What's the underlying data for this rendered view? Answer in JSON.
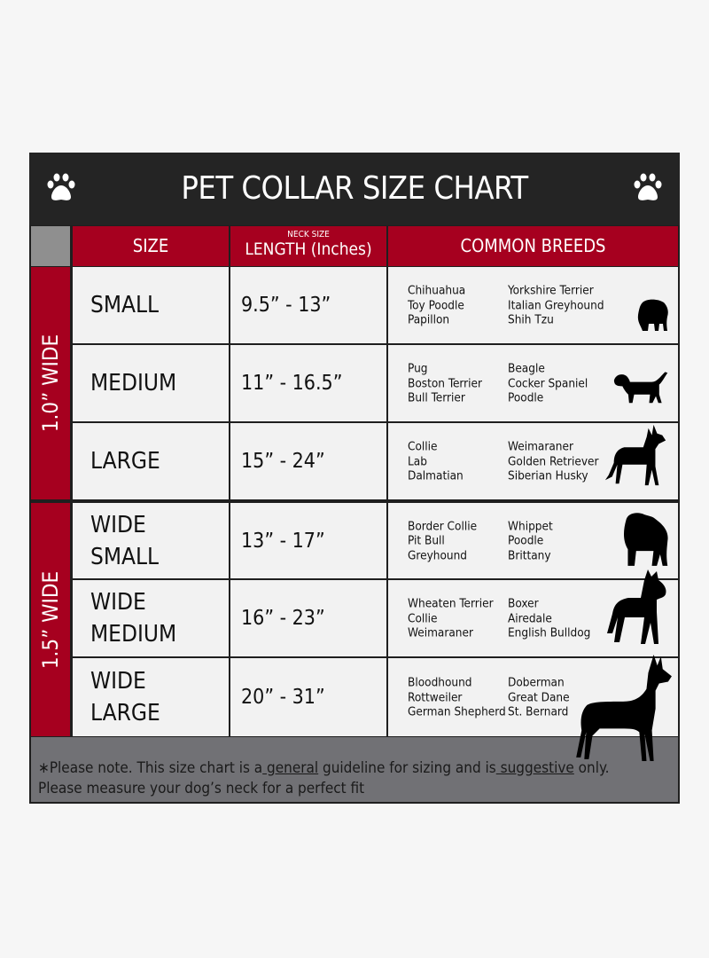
{
  "title": "PET COLLAR SIZE CHART",
  "icons": [
    "paw-icon",
    "paw-icon"
  ],
  "colors": {
    "header": "#242424",
    "accent": "#a6001f",
    "cell": "#f2f2f2",
    "footer": "#717175"
  },
  "columns": {
    "size": "SIZE",
    "length_sup": "NECK SIZE",
    "length": "LENGTH (Inches)",
    "breeds": "COMMON BREEDS"
  },
  "groups": [
    {
      "label": "1.0” WIDE"
    },
    {
      "label": "1.5” WIDE"
    }
  ],
  "rows": [
    {
      "size": [
        "SMALL"
      ],
      "length": "9.5” - 13”",
      "breeds1": [
        "Chihuahua",
        "Toy Poodle",
        "Papillon"
      ],
      "breeds2": [
        "Yorkshire Terrier",
        "Italian Greyhound",
        "Shih Tzu"
      ],
      "icon": "pomeranian-silhouette-icon"
    },
    {
      "size": [
        "MEDIUM"
      ],
      "length": "11” - 16.5”",
      "breeds1": [
        "Pug",
        "Boston Terrier",
        "Bull Terrier"
      ],
      "breeds2": [
        "Beagle",
        "Cocker Spaniel",
        "Poodle"
      ],
      "icon": "dachshund-silhouette-icon"
    },
    {
      "size": [
        "LARGE"
      ],
      "length": "15” - 24”",
      "breeds1": [
        "Collie",
        "Lab",
        "Dalmatian"
      ],
      "breeds2": [
        "Weimaraner",
        "Golden Retriever",
        "Siberian Husky"
      ],
      "icon": "shepherd-silhouette-icon"
    },
    {
      "size": [
        "WIDE",
        "SMALL"
      ],
      "length": "13” - 17”",
      "breeds1": [
        "Border Collie",
        "Pit Bull",
        "Greyhound"
      ],
      "breeds2": [
        "Whippet",
        "Poodle",
        "Brittany"
      ],
      "icon": "bulldog-silhouette-icon"
    },
    {
      "size": [
        "WIDE",
        "MEDIUM"
      ],
      "length": "16” - 23”",
      "breeds1": [
        "Wheaten Terrier",
        "Collie",
        "Weimaraner"
      ],
      "breeds2": [
        "Boxer",
        "Airedale",
        "English Bulldog"
      ],
      "icon": "pitbull-silhouette-icon"
    },
    {
      "size": [
        "WIDE",
        "LARGE"
      ],
      "length": "20” - 31”",
      "breeds1": [
        "Bloodhound",
        "Rottweiler",
        "German Shepherd"
      ],
      "breeds2": [
        "Doberman",
        "Great Dane",
        "St. Bernard"
      ],
      "icon": "doberman-silhouette-icon"
    }
  ],
  "footer": {
    "p1": "∗Please note. This size chart is a",
    "u1": " general",
    "p2": " guideline for sizing and is",
    "u2": " suggestive",
    "p3": " only.",
    "line2": "Please measure your dog’s neck for a perfect fit"
  }
}
